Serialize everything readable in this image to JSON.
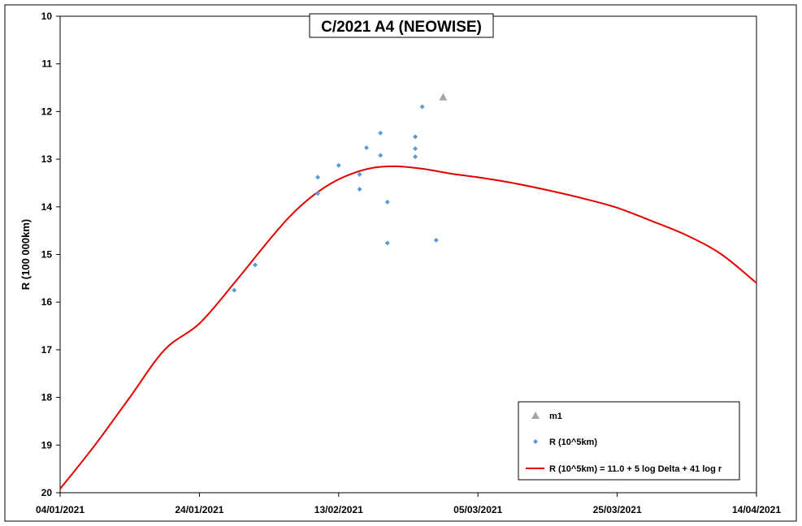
{
  "chart_data": {
    "type": "scatter",
    "title": "C/2021 A4 (NEOWISE)",
    "ylabel": "R (100 000km)",
    "xlabel": "",
    "x_type": "date",
    "xlim": [
      "2021-01-04",
      "2021-04-14"
    ],
    "ylim": [
      10,
      20
    ],
    "y_inverted": true,
    "x_ticks": [
      "2021-01-04",
      "2021-01-24",
      "2021-02-13",
      "2021-03-05",
      "2021-03-25",
      "2021-04-14"
    ],
    "x_tick_labels": [
      "04/01/2021",
      "24/01/2021",
      "13/02/2021",
      "05/03/2021",
      "25/03/2021",
      "14/04/2021"
    ],
    "y_ticks": [
      10,
      11,
      12,
      13,
      14,
      15,
      16,
      17,
      18,
      19,
      20
    ],
    "y_tick_labels": [
      "10",
      "11",
      "12",
      "13",
      "14",
      "15",
      "16",
      "17",
      "18",
      "19",
      "20"
    ],
    "legend_position": "bottom-right",
    "series": [
      {
        "name": "m1",
        "type": "scatter",
        "marker": "triangle",
        "color": "#a6a6a6",
        "x": [
          "2021-02-28"
        ],
        "y": [
          11.7
        ]
      },
      {
        "name": "R (10^5km)",
        "type": "scatter",
        "marker": "diamond",
        "color": "#5b9bd5",
        "x": [
          "2021-01-29",
          "2021-02-01",
          "2021-02-10",
          "2021-02-10",
          "2021-02-13",
          "2021-02-16",
          "2021-02-16",
          "2021-02-17",
          "2021-02-19",
          "2021-02-19",
          "2021-02-20",
          "2021-02-20",
          "2021-02-24",
          "2021-02-24",
          "2021-02-24",
          "2021-02-25",
          "2021-02-27"
        ],
        "y": [
          15.75,
          15.22,
          13.38,
          13.72,
          13.13,
          13.32,
          13.63,
          12.76,
          12.45,
          12.92,
          13.9,
          14.76,
          12.53,
          12.78,
          12.95,
          11.9,
          14.7
        ]
      },
      {
        "name": "R (10^5km) = 11.0 + 5 log Delta + 41 log r",
        "type": "line",
        "color": "#e00000",
        "x": [
          "2021-01-04",
          "2021-01-09",
          "2021-01-14",
          "2021-01-19",
          "2021-01-24",
          "2021-01-29",
          "2021-02-03",
          "2021-02-06",
          "2021-02-09",
          "2021-02-12",
          "2021-02-15",
          "2021-02-18",
          "2021-02-21",
          "2021-02-25",
          "2021-03-01",
          "2021-03-05",
          "2021-03-10",
          "2021-03-15",
          "2021-03-20",
          "2021-03-25",
          "2021-03-30",
          "2021-04-04",
          "2021-04-09",
          "2021-04-14"
        ],
        "y": [
          19.92,
          19.0,
          18.0,
          17.0,
          16.45,
          15.6,
          14.7,
          14.2,
          13.8,
          13.5,
          13.3,
          13.18,
          13.15,
          13.2,
          13.3,
          13.38,
          13.5,
          13.65,
          13.82,
          14.02,
          14.3,
          14.6,
          15.0,
          15.6
        ]
      }
    ]
  }
}
